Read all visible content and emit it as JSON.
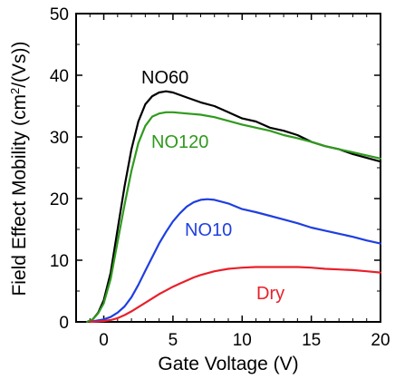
{
  "chart_data": {
    "type": "line",
    "xlabel": "Gate Voltage (V)",
    "ylabel": "Field Effect Mobility (cm",
    "ylabel_sup": "2",
    "ylabel_end": "/(Vs))",
    "xlim": [
      -2,
      20
    ],
    "ylim": [
      0,
      50
    ],
    "x_ticks": [
      "0",
      "5",
      "10",
      "15",
      "20"
    ],
    "y_ticks": [
      "0",
      "10",
      "20",
      "30",
      "40",
      "50"
    ],
    "grid": false,
    "series": [
      {
        "name": "NO60",
        "color": "#000000",
        "x": [
          -1.2,
          -0.8,
          -0.4,
          0,
          0.5,
          1,
          1.5,
          2,
          2.5,
          3,
          3.5,
          4,
          4.5,
          5,
          6,
          7,
          8,
          9,
          10,
          11,
          12,
          13,
          14,
          15,
          16,
          17,
          18,
          19,
          20
        ],
        "y": [
          0,
          0.4,
          1.5,
          3.5,
          8,
          15,
          22,
          28,
          32.5,
          35.3,
          36.6,
          37.2,
          37.4,
          37.2,
          36.4,
          35.6,
          35,
          34,
          33,
          32.5,
          31.5,
          31,
          30.3,
          29.2,
          28.5,
          28,
          27.2,
          26.6,
          26
        ]
      },
      {
        "name": "NO120",
        "color": "#2f9a1d",
        "x": [
          -1.2,
          -0.8,
          -0.4,
          0,
          0.5,
          1,
          1.5,
          2,
          2.5,
          3,
          3.5,
          4,
          4.5,
          5,
          6,
          7,
          8,
          9,
          10,
          11,
          12,
          13,
          14,
          15,
          16,
          17,
          18,
          19,
          20
        ],
        "y": [
          0,
          0.4,
          1.4,
          3,
          7,
          13,
          19,
          24.5,
          29,
          31.8,
          33.3,
          33.8,
          34,
          34,
          33.8,
          33.6,
          33.2,
          32.6,
          32,
          31.5,
          31,
          30.3,
          29.8,
          29.2,
          28.5,
          28,
          27.5,
          27,
          26.5
        ]
      },
      {
        "name": "NO10",
        "color": "#1f3fe0",
        "x": [
          -1,
          -0.5,
          0,
          0.5,
          1,
          1.5,
          2,
          2.5,
          3,
          3.5,
          4,
          4.5,
          5,
          5.5,
          6,
          6.5,
          7,
          7.5,
          8,
          8.5,
          9,
          10,
          11,
          12,
          13,
          14,
          15,
          16,
          17,
          18,
          19,
          20
        ],
        "y": [
          0,
          0.2,
          0.4,
          0.8,
          1.5,
          2.5,
          4,
          6,
          8.3,
          10.5,
          12.7,
          14.6,
          16.3,
          17.6,
          18.7,
          19.4,
          19.8,
          19.9,
          19.8,
          19.5,
          19.2,
          18.3,
          17.8,
          17.2,
          16.6,
          16,
          15.3,
          14.8,
          14.3,
          13.8,
          13.2,
          12.7
        ]
      },
      {
        "name": "Dry",
        "color": "#e8202a",
        "x": [
          -1,
          -0.5,
          0,
          0.5,
          1,
          1.5,
          2,
          2.5,
          3,
          3.5,
          4,
          4.5,
          5,
          5.5,
          6,
          6.5,
          7,
          8,
          9,
          10,
          11,
          12,
          13,
          14,
          15,
          16,
          17,
          18,
          19,
          20
        ],
        "y": [
          0,
          0.05,
          0.15,
          0.3,
          0.6,
          1.1,
          1.7,
          2.4,
          3.1,
          3.8,
          4.5,
          5.1,
          5.7,
          6.2,
          6.7,
          7.2,
          7.6,
          8.2,
          8.6,
          8.8,
          8.9,
          8.9,
          8.9,
          8.9,
          8.8,
          8.6,
          8.5,
          8.4,
          8.2,
          8.0
        ]
      }
    ]
  }
}
